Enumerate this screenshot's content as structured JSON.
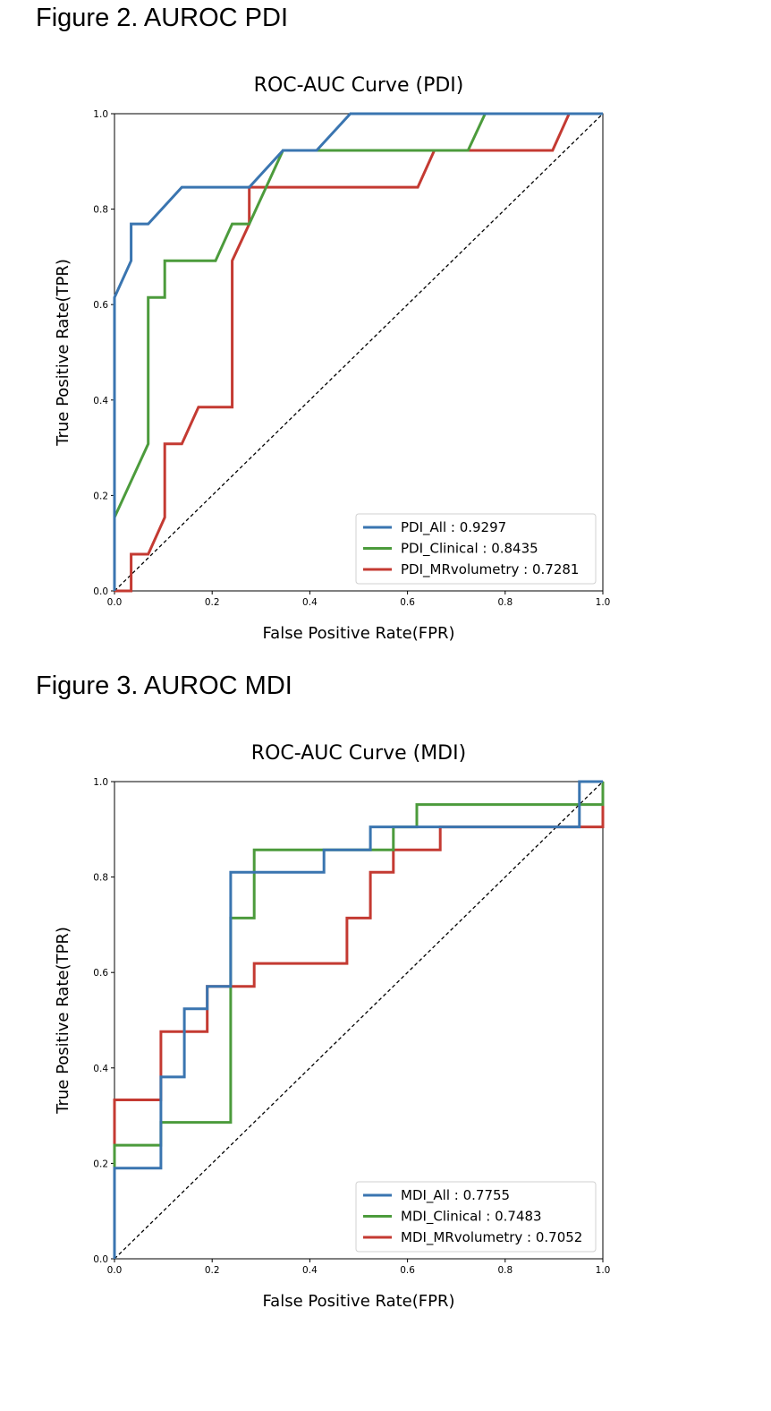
{
  "figures": [
    {
      "heading": "Figure 2. AUROC PDI"
    },
    {
      "heading": "Figure 3. AUROC MDI"
    }
  ],
  "chart_data": [
    {
      "type": "line",
      "title": "ROC-AUC Curve (PDI)",
      "xlabel": "False Positive Rate(FPR)",
      "ylabel": "True Positive Rate(TPR)",
      "xlim": [
        0,
        1
      ],
      "ylim": [
        0,
        1
      ],
      "xticks": [
        "0.0",
        "0.2",
        "0.4",
        "0.6",
        "0.8",
        "1.0"
      ],
      "yticks": [
        "0.0",
        "0.2",
        "0.4",
        "0.6",
        "0.8",
        "1.0"
      ],
      "grid": false,
      "legend_position": "lower-right",
      "diagonal": true,
      "series": [
        {
          "name": "PDI_All : 0.9297",
          "color": "#3a75b0",
          "points": [
            [
              0,
              0
            ],
            [
              0,
              0.615
            ],
            [
              0.034,
              0.692
            ],
            [
              0.034,
              0.769
            ],
            [
              0.069,
              0.769
            ],
            [
              0.138,
              0.846
            ],
            [
              0.276,
              0.846
            ],
            [
              0.345,
              0.923
            ],
            [
              0.414,
              0.923
            ],
            [
              0.483,
              1.0
            ],
            [
              1.0,
              1.0
            ]
          ]
        },
        {
          "name": "PDI_Clinical : 0.8435",
          "color": "#4c9b3c",
          "points": [
            [
              0,
              0
            ],
            [
              0,
              0.154
            ],
            [
              0.069,
              0.308
            ],
            [
              0.069,
              0.615
            ],
            [
              0.103,
              0.615
            ],
            [
              0.103,
              0.692
            ],
            [
              0.207,
              0.692
            ],
            [
              0.241,
              0.769
            ],
            [
              0.276,
              0.769
            ],
            [
              0.345,
              0.923
            ],
            [
              0.724,
              0.923
            ],
            [
              0.759,
              1.0
            ],
            [
              1.0,
              1.0
            ]
          ]
        },
        {
          "name": "PDI_MRvolumetry : 0.7281",
          "color": "#c43a32",
          "points": [
            [
              0,
              0
            ],
            [
              0.034,
              0
            ],
            [
              0.034,
              0.077
            ],
            [
              0.069,
              0.077
            ],
            [
              0.103,
              0.154
            ],
            [
              0.103,
              0.308
            ],
            [
              0.138,
              0.308
            ],
            [
              0.172,
              0.385
            ],
            [
              0.241,
              0.385
            ],
            [
              0.241,
              0.692
            ],
            [
              0.276,
              0.769
            ],
            [
              0.276,
              0.846
            ],
            [
              0.621,
              0.846
            ],
            [
              0.655,
              0.923
            ],
            [
              0.897,
              0.923
            ],
            [
              0.931,
              1.0
            ],
            [
              1.0,
              1.0
            ]
          ]
        }
      ]
    },
    {
      "type": "line",
      "title": "ROC-AUC Curve (MDI)",
      "xlabel": "False Positive Rate(FPR)",
      "ylabel": "True Positive Rate(TPR)",
      "xlim": [
        0,
        1
      ],
      "ylim": [
        0,
        1
      ],
      "xticks": [
        "0.0",
        "0.2",
        "0.4",
        "0.6",
        "0.8",
        "1.0"
      ],
      "yticks": [
        "0.0",
        "0.2",
        "0.4",
        "0.6",
        "0.8",
        "1.0"
      ],
      "grid": false,
      "legend_position": "lower-right",
      "diagonal": true,
      "series": [
        {
          "name": "MDI_All : 0.7755",
          "color": "#3a75b0",
          "points": [
            [
              0,
              0
            ],
            [
              0,
              0.19
            ],
            [
              0.095,
              0.19
            ],
            [
              0.095,
              0.381
            ],
            [
              0.143,
              0.381
            ],
            [
              0.143,
              0.524
            ],
            [
              0.19,
              0.524
            ],
            [
              0.19,
              0.571
            ],
            [
              0.238,
              0.571
            ],
            [
              0.238,
              0.81
            ],
            [
              0.429,
              0.81
            ],
            [
              0.429,
              0.857
            ],
            [
              0.524,
              0.857
            ],
            [
              0.524,
              0.905
            ],
            [
              0.952,
              0.905
            ],
            [
              0.952,
              1.0
            ],
            [
              1.0,
              1.0
            ]
          ]
        },
        {
          "name": "MDI_Clinical : 0.7483",
          "color": "#4c9b3c",
          "points": [
            [
              0,
              0
            ],
            [
              0,
              0.238
            ],
            [
              0.095,
              0.238
            ],
            [
              0.095,
              0.286
            ],
            [
              0.238,
              0.286
            ],
            [
              0.238,
              0.714
            ],
            [
              0.286,
              0.714
            ],
            [
              0.286,
              0.857
            ],
            [
              0.571,
              0.857
            ],
            [
              0.571,
              0.905
            ],
            [
              0.619,
              0.905
            ],
            [
              0.619,
              0.952
            ],
            [
              1.0,
              0.952
            ],
            [
              1.0,
              1.0
            ]
          ]
        },
        {
          "name": "MDI_MRvolumetry : 0.7052",
          "color": "#c43a32",
          "points": [
            [
              0,
              0
            ],
            [
              0,
              0.333
            ],
            [
              0.095,
              0.333
            ],
            [
              0.095,
              0.476
            ],
            [
              0.19,
              0.476
            ],
            [
              0.19,
              0.571
            ],
            [
              0.286,
              0.571
            ],
            [
              0.286,
              0.619
            ],
            [
              0.476,
              0.619
            ],
            [
              0.476,
              0.714
            ],
            [
              0.524,
              0.714
            ],
            [
              0.524,
              0.81
            ],
            [
              0.571,
              0.81
            ],
            [
              0.571,
              0.857
            ],
            [
              0.667,
              0.857
            ],
            [
              0.667,
              0.905
            ],
            [
              1.0,
              0.905
            ],
            [
              1.0,
              1.0
            ]
          ]
        }
      ]
    }
  ]
}
